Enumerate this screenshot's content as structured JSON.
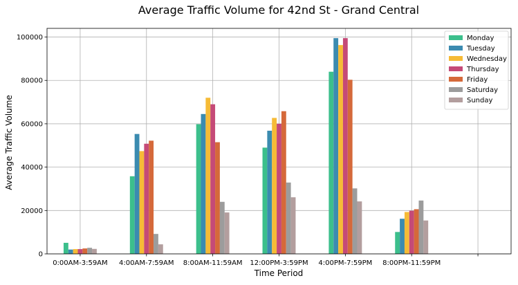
{
  "chart_data": {
    "type": "bar",
    "title": "Average Traffic Volume for 42nd St - Grand Central",
    "xlabel": "Time Period",
    "ylabel": "Average Traffic Volume",
    "ylim": [
      0,
      104000
    ],
    "yticks": [
      0,
      20000,
      40000,
      60000,
      80000,
      100000
    ],
    "grid": true,
    "legend_position": "top-right",
    "categories": [
      "0:00AM-3:59AM",
      "4:00AM-7:59AM",
      "8:00AM-11:59AM",
      "12:00PM-3:59PM",
      "4:00PM-7:59PM",
      "8:00PM-11:59PM"
    ],
    "series": [
      {
        "name": "Monday",
        "color": "#3cbf8c",
        "values": [
          5100,
          35800,
          59800,
          49000,
          84000,
          10100
        ]
      },
      {
        "name": "Tuesday",
        "color": "#3b8bb0",
        "values": [
          2000,
          55300,
          64500,
          56800,
          99500,
          16200
        ]
      },
      {
        "name": "Wednesday",
        "color": "#f6bb36",
        "values": [
          2200,
          47400,
          72000,
          62700,
          96300,
          19300
        ]
      },
      {
        "name": "Thursday",
        "color": "#c54a77",
        "values": [
          2200,
          50800,
          69000,
          60000,
          99500,
          19900
        ]
      },
      {
        "name": "Friday",
        "color": "#d5693a",
        "values": [
          2500,
          52200,
          51500,
          65800,
          80300,
          20600
        ]
      },
      {
        "name": "Saturday",
        "color": "#9c9c9c",
        "values": [
          2800,
          9200,
          24000,
          32900,
          30200,
          24600
        ]
      },
      {
        "name": "Sunday",
        "color": "#b39e9e",
        "values": [
          2300,
          4400,
          19100,
          26100,
          24200,
          15400
        ]
      }
    ]
  }
}
